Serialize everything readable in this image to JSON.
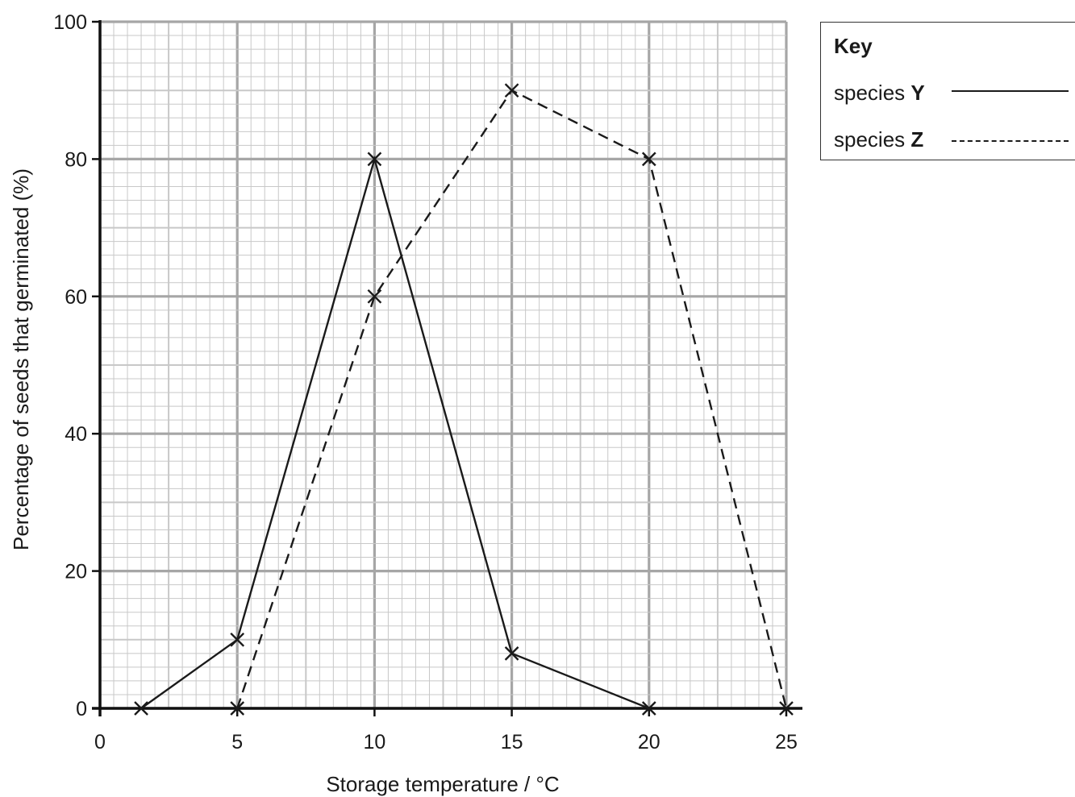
{
  "chart_data": {
    "type": "line",
    "xlabel": "Storage temperature / °C",
    "ylabel": "Percentage of seeds that germinated (%)",
    "xlim": [
      0,
      25
    ],
    "ylim": [
      0,
      100
    ],
    "xticks": [
      "0",
      "5",
      "10",
      "15",
      "20",
      "25"
    ],
    "yticks": [
      "0",
      "20",
      "40",
      "60",
      "80",
      "100"
    ],
    "grid": true,
    "legend_placement": "top-right outside",
    "series": [
      {
        "name": "species Y",
        "style": "solid",
        "x": [
          1.5,
          5,
          10,
          15,
          20
        ],
        "y": [
          0,
          10,
          80,
          8,
          0
        ]
      },
      {
        "name": "species Z",
        "style": "dashed",
        "x": [
          5,
          10,
          15,
          20,
          25
        ],
        "y": [
          0,
          60,
          90,
          80,
          0
        ]
      }
    ]
  },
  "key": {
    "title": "Key",
    "items": [
      {
        "prefix": "species ",
        "letter": "Y"
      },
      {
        "prefix": "species ",
        "letter": "Z"
      }
    ]
  },
  "colors": {
    "grid_major": "#a6a6a6",
    "grid_minor": "#c8c8c8",
    "axis": "#111111",
    "line": "#1a1a1a"
  }
}
